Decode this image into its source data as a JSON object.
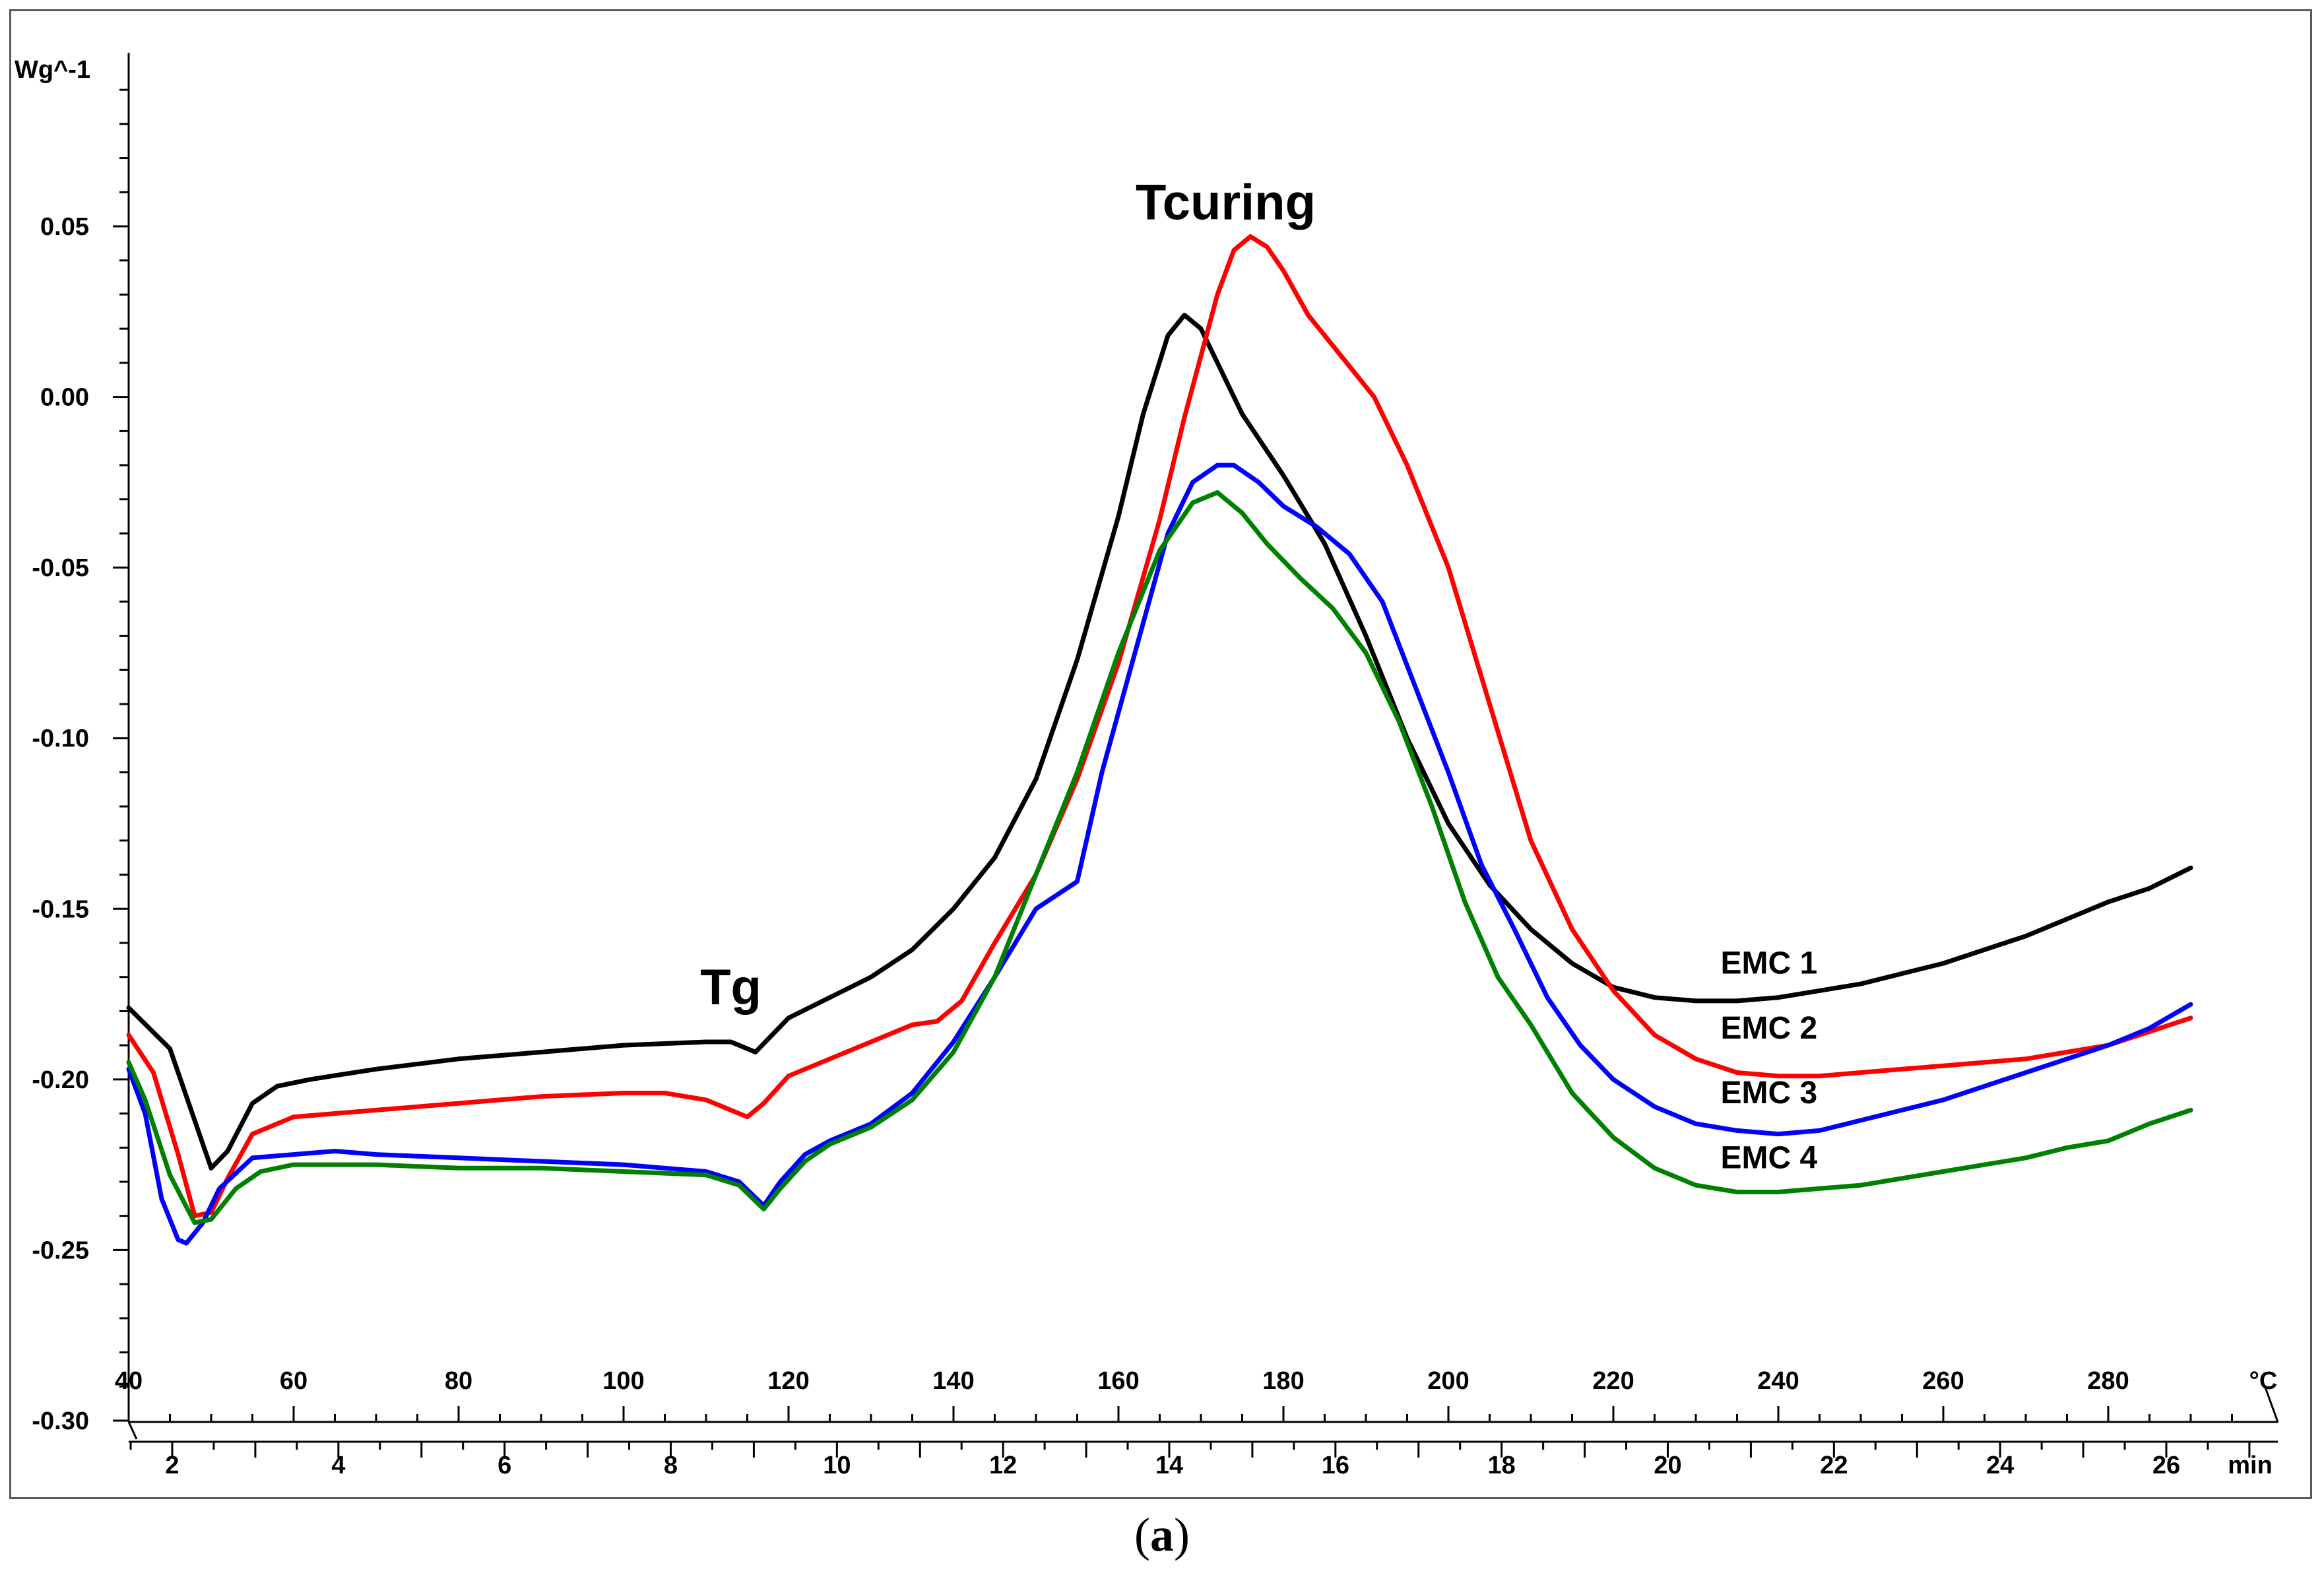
{
  "caption": {
    "open": "(",
    "letter": "a",
    "close": ")"
  },
  "chart_data": {
    "type": "line",
    "ylabel": "Wg^-1",
    "temp_unit": "°C",
    "time_unit": "min",
    "ylim": [
      -0.3,
      0.09
    ],
    "y_ticks": [
      0.05,
      0.0,
      -0.05,
      -0.1,
      -0.15,
      -0.2,
      -0.25,
      -0.3
    ],
    "y_tick_labels": [
      "0.05",
      "0.00",
      "-0.05",
      "-0.10",
      "-0.15",
      "-0.20",
      "-0.25",
      "-0.30"
    ],
    "temperature_range_C": [
      40,
      295
    ],
    "temp_ticks": [
      40,
      60,
      80,
      100,
      120,
      140,
      160,
      180,
      200,
      220,
      240,
      260,
      280
    ],
    "temp_tick_labels": [
      "40",
      "60",
      "80",
      "100",
      "120",
      "140",
      "160",
      "180",
      "200",
      "220",
      "240",
      "260",
      "280"
    ],
    "time_range_min": [
      1.5,
      27.0
    ],
    "time_ticks": [
      2,
      4,
      6,
      8,
      10,
      12,
      14,
      16,
      18,
      20,
      22,
      24,
      26
    ],
    "time_tick_labels": [
      "2",
      "4",
      "6",
      "8",
      "10",
      "12",
      "14",
      "16",
      "18",
      "20",
      "22",
      "24",
      "26"
    ],
    "annotations": [
      {
        "text": "Tg",
        "x": 113,
        "y": -0.178
      },
      {
        "text": "Tcuring",
        "x": 173,
        "y": 0.052
      }
    ],
    "series": [
      {
        "name": "EMC 1",
        "color": "#000000",
        "label_x": 233,
        "label_y": -0.169,
        "points": [
          [
            40,
            -0.179
          ],
          [
            45,
            -0.191
          ],
          [
            48,
            -0.212
          ],
          [
            50,
            -0.226
          ],
          [
            52,
            -0.221
          ],
          [
            55,
            -0.207
          ],
          [
            58,
            -0.202
          ],
          [
            62,
            -0.2
          ],
          [
            70,
            -0.197
          ],
          [
            80,
            -0.194
          ],
          [
            90,
            -0.192
          ],
          [
            100,
            -0.19
          ],
          [
            110,
            -0.189
          ],
          [
            113,
            -0.189
          ],
          [
            116,
            -0.192
          ],
          [
            118,
            -0.187
          ],
          [
            120,
            -0.182
          ],
          [
            125,
            -0.176
          ],
          [
            130,
            -0.17
          ],
          [
            135,
            -0.162
          ],
          [
            140,
            -0.15
          ],
          [
            145,
            -0.135
          ],
          [
            150,
            -0.112
          ],
          [
            155,
            -0.077
          ],
          [
            160,
            -0.035
          ],
          [
            163,
            -0.005
          ],
          [
            166,
            0.018
          ],
          [
            168,
            0.024
          ],
          [
            170,
            0.02
          ],
          [
            172,
            0.01
          ],
          [
            175,
            -0.005
          ],
          [
            180,
            -0.023
          ],
          [
            185,
            -0.043
          ],
          [
            190,
            -0.07
          ],
          [
            195,
            -0.1
          ],
          [
            200,
            -0.125
          ],
          [
            205,
            -0.143
          ],
          [
            210,
            -0.156
          ],
          [
            215,
            -0.166
          ],
          [
            220,
            -0.173
          ],
          [
            225,
            -0.176
          ],
          [
            230,
            -0.177
          ],
          [
            235,
            -0.177
          ],
          [
            240,
            -0.176
          ],
          [
            245,
            -0.174
          ],
          [
            250,
            -0.172
          ],
          [
            255,
            -0.169
          ],
          [
            260,
            -0.166
          ],
          [
            265,
            -0.162
          ],
          [
            270,
            -0.158
          ],
          [
            275,
            -0.153
          ],
          [
            280,
            -0.148
          ],
          [
            285,
            -0.144
          ],
          [
            290,
            -0.138
          ]
        ]
      },
      {
        "name": "EMC 2",
        "color": "#ff0000",
        "label_x": 233,
        "label_y": -0.188,
        "points": [
          [
            40,
            -0.187
          ],
          [
            43,
            -0.198
          ],
          [
            46,
            -0.222
          ],
          [
            48,
            -0.24
          ],
          [
            50,
            -0.239
          ],
          [
            52,
            -0.229
          ],
          [
            55,
            -0.216
          ],
          [
            60,
            -0.211
          ],
          [
            70,
            -0.209
          ],
          [
            80,
            -0.207
          ],
          [
            90,
            -0.205
          ],
          [
            100,
            -0.204
          ],
          [
            105,
            -0.204
          ],
          [
            110,
            -0.206
          ],
          [
            115,
            -0.211
          ],
          [
            117,
            -0.207
          ],
          [
            120,
            -0.199
          ],
          [
            125,
            -0.194
          ],
          [
            130,
            -0.189
          ],
          [
            135,
            -0.184
          ],
          [
            138,
            -0.183
          ],
          [
            141,
            -0.177
          ],
          [
            145,
            -0.16
          ],
          [
            150,
            -0.14
          ],
          [
            155,
            -0.112
          ],
          [
            160,
            -0.078
          ],
          [
            165,
            -0.036
          ],
          [
            168,
            -0.006
          ],
          [
            172,
            0.03
          ],
          [
            174,
            0.043
          ],
          [
            176,
            0.047
          ],
          [
            178,
            0.044
          ],
          [
            180,
            0.037
          ],
          [
            183,
            0.024
          ],
          [
            187,
            0.012
          ],
          [
            191,
            0.0
          ],
          [
            195,
            -0.02
          ],
          [
            200,
            -0.05
          ],
          [
            205,
            -0.09
          ],
          [
            210,
            -0.13
          ],
          [
            215,
            -0.156
          ],
          [
            220,
            -0.174
          ],
          [
            225,
            -0.187
          ],
          [
            230,
            -0.194
          ],
          [
            235,
            -0.198
          ],
          [
            240,
            -0.199
          ],
          [
            245,
            -0.199
          ],
          [
            250,
            -0.198
          ],
          [
            255,
            -0.197
          ],
          [
            260,
            -0.196
          ],
          [
            265,
            -0.195
          ],
          [
            270,
            -0.194
          ],
          [
            275,
            -0.192
          ],
          [
            280,
            -0.19
          ],
          [
            285,
            -0.186
          ],
          [
            290,
            -0.182
          ]
        ]
      },
      {
        "name": "EMC 3",
        "color": "#0000ff",
        "label_x": 233,
        "label_y": -0.207,
        "points": [
          [
            40,
            -0.197
          ],
          [
            42,
            -0.21
          ],
          [
            44,
            -0.235
          ],
          [
            46,
            -0.247
          ],
          [
            47,
            -0.248
          ],
          [
            49,
            -0.242
          ],
          [
            51,
            -0.232
          ],
          [
            55,
            -0.223
          ],
          [
            60,
            -0.222
          ],
          [
            65,
            -0.221
          ],
          [
            70,
            -0.222
          ],
          [
            80,
            -0.223
          ],
          [
            90,
            -0.224
          ],
          [
            100,
            -0.225
          ],
          [
            110,
            -0.227
          ],
          [
            114,
            -0.23
          ],
          [
            117,
            -0.237
          ],
          [
            119,
            -0.23
          ],
          [
            122,
            -0.222
          ],
          [
            125,
            -0.218
          ],
          [
            130,
            -0.213
          ],
          [
            135,
            -0.204
          ],
          [
            140,
            -0.189
          ],
          [
            145,
            -0.17
          ],
          [
            150,
            -0.15
          ],
          [
            155,
            -0.142
          ],
          [
            158,
            -0.11
          ],
          [
            162,
            -0.075
          ],
          [
            166,
            -0.04
          ],
          [
            169,
            -0.025
          ],
          [
            172,
            -0.02
          ],
          [
            174,
            -0.02
          ],
          [
            177,
            -0.025
          ],
          [
            180,
            -0.032
          ],
          [
            184,
            -0.038
          ],
          [
            188,
            -0.046
          ],
          [
            192,
            -0.06
          ],
          [
            196,
            -0.085
          ],
          [
            200,
            -0.11
          ],
          [
            204,
            -0.137
          ],
          [
            208,
            -0.156
          ],
          [
            212,
            -0.176
          ],
          [
            216,
            -0.19
          ],
          [
            220,
            -0.2
          ],
          [
            225,
            -0.208
          ],
          [
            230,
            -0.213
          ],
          [
            235,
            -0.215
          ],
          [
            240,
            -0.216
          ],
          [
            245,
            -0.215
          ],
          [
            250,
            -0.212
          ],
          [
            255,
            -0.209
          ],
          [
            260,
            -0.206
          ],
          [
            265,
            -0.202
          ],
          [
            270,
            -0.198
          ],
          [
            275,
            -0.194
          ],
          [
            280,
            -0.19
          ],
          [
            285,
            -0.185
          ],
          [
            290,
            -0.178
          ]
        ]
      },
      {
        "name": "EMC 4",
        "color": "#008000",
        "label_x": 233,
        "label_y": -0.226,
        "points": [
          [
            40,
            -0.195
          ],
          [
            42,
            -0.206
          ],
          [
            45,
            -0.228
          ],
          [
            48,
            -0.242
          ],
          [
            50,
            -0.241
          ],
          [
            53,
            -0.232
          ],
          [
            56,
            -0.227
          ],
          [
            60,
            -0.225
          ],
          [
            70,
            -0.225
          ],
          [
            80,
            -0.226
          ],
          [
            90,
            -0.226
          ],
          [
            100,
            -0.227
          ],
          [
            110,
            -0.228
          ],
          [
            114,
            -0.231
          ],
          [
            117,
            -0.238
          ],
          [
            119,
            -0.232
          ],
          [
            122,
            -0.224
          ],
          [
            125,
            -0.219
          ],
          [
            130,
            -0.214
          ],
          [
            135,
            -0.206
          ],
          [
            140,
            -0.192
          ],
          [
            145,
            -0.17
          ],
          [
            150,
            -0.14
          ],
          [
            155,
            -0.11
          ],
          [
            160,
            -0.075
          ],
          [
            165,
            -0.045
          ],
          [
            169,
            -0.031
          ],
          [
            172,
            -0.028
          ],
          [
            175,
            -0.034
          ],
          [
            178,
            -0.043
          ],
          [
            182,
            -0.053
          ],
          [
            186,
            -0.062
          ],
          [
            190,
            -0.075
          ],
          [
            194,
            -0.095
          ],
          [
            198,
            -0.12
          ],
          [
            202,
            -0.148
          ],
          [
            206,
            -0.17
          ],
          [
            210,
            -0.184
          ],
          [
            215,
            -0.204
          ],
          [
            220,
            -0.217
          ],
          [
            225,
            -0.226
          ],
          [
            230,
            -0.231
          ],
          [
            235,
            -0.233
          ],
          [
            240,
            -0.233
          ],
          [
            245,
            -0.232
          ],
          [
            250,
            -0.231
          ],
          [
            255,
            -0.229
          ],
          [
            260,
            -0.227
          ],
          [
            265,
            -0.225
          ],
          [
            270,
            -0.223
          ],
          [
            275,
            -0.22
          ],
          [
            280,
            -0.218
          ],
          [
            285,
            -0.213
          ],
          [
            290,
            -0.209
          ]
        ]
      }
    ]
  }
}
